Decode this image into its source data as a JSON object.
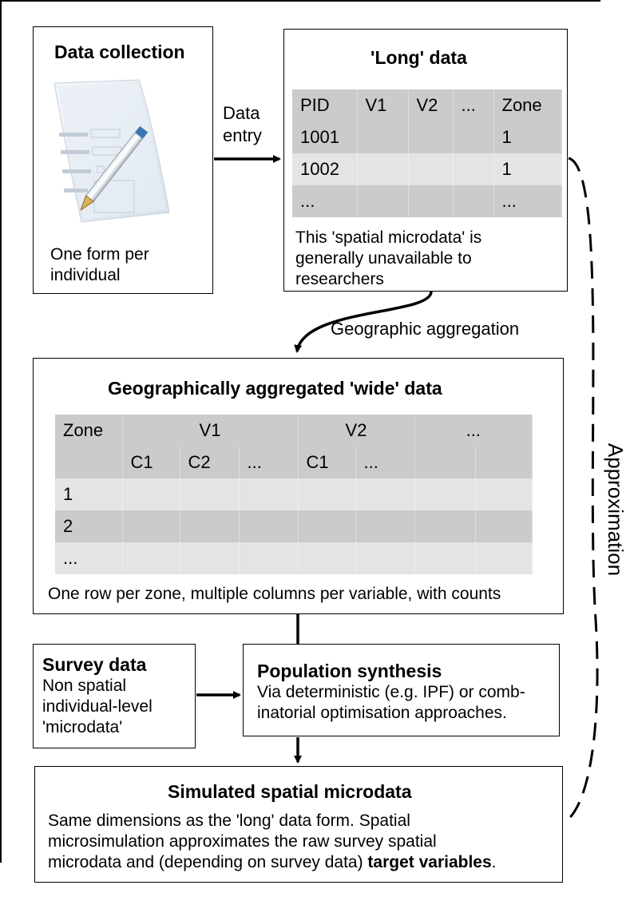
{
  "boxes": {
    "data_collection": {
      "title": "Data collection",
      "caption_line1": "One form per",
      "caption_line2": "individual",
      "image_icon": "form-pen-icon"
    },
    "long_data": {
      "title": "'Long' data",
      "table": {
        "header": [
          "PID",
          "V1",
          "V2",
          "...",
          "Zone"
        ],
        "rows": [
          [
            "1001",
            "",
            "",
            "",
            "1"
          ],
          [
            "1002",
            "",
            "",
            "",
            "1"
          ],
          [
            "...",
            "",
            "",
            "",
            "..."
          ]
        ]
      },
      "note_line1": "This 'spatial microdata' is",
      "note_line2": "generally unavailable to",
      "note_line3": "researchers"
    },
    "wide_data": {
      "title": "Geographically aggregated 'wide' data",
      "table": {
        "header1": [
          "Zone",
          "V1",
          "V2",
          "..."
        ],
        "header2": [
          "",
          "C1",
          "C2",
          "...",
          "C1",
          "...",
          "",
          ""
        ],
        "rows": [
          [
            "1"
          ],
          [
            "2"
          ],
          [
            "..."
          ]
        ]
      },
      "note": "One row per zone, multiple columns per variable, with counts"
    },
    "survey_data": {
      "title": "Survey data",
      "line1": "Non spatial",
      "line2": "individual-level",
      "line3": "'microdata'"
    },
    "population_synthesis": {
      "title": "Population synthesis",
      "line1": "Via deterministic (e.g. IPF) or comb-",
      "line2": "inatorial optimisation approaches."
    },
    "simulated": {
      "title": "Simulated spatial microdata",
      "line1": "Same dimensions as the 'long' data form. Spatial",
      "line2": "microsimulation approximates the raw survey spatial",
      "line3_plain": "microdata and (depending on survey data) ",
      "line3_bold": "target variables",
      "line3_end": "."
    }
  },
  "edges": {
    "data_entry_line1": "Data",
    "data_entry_line2": "entry",
    "geographic_aggregation": "Geographic aggregation",
    "approximation": "Approximation"
  }
}
